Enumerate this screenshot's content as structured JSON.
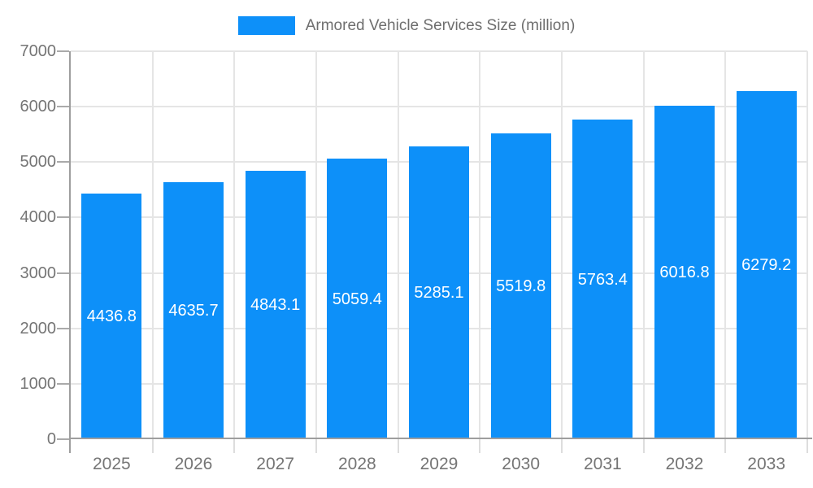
{
  "legend": {
    "label": "Armored Vehicle Services Size (million)"
  },
  "colors": {
    "bar": "#0D90F9",
    "axis_line": "#9e9e9e",
    "grid_line": "#e5e5e5",
    "y_tick": "#aaaaaa",
    "x_tick": "#dddddd",
    "axis_text": "#757575",
    "legend_text": "#6e6e6e",
    "value_text": "#ffffff",
    "background": "#ffffff"
  },
  "chart_data": {
    "type": "bar",
    "title": "Armored Vehicle Services Size (million)",
    "categories": [
      "2025",
      "2026",
      "2027",
      "2028",
      "2029",
      "2030",
      "2031",
      "2032",
      "2033"
    ],
    "values": [
      4436.8,
      4635.7,
      4843.1,
      5059.4,
      5285.1,
      5519.8,
      5763.4,
      6016.8,
      6279.2
    ],
    "value_label_decimals": 1,
    "value_label_position": "inside-center",
    "xlabel": "",
    "ylabel": "",
    "ylim": [
      0,
      7000
    ],
    "y_ticks": [
      0,
      1000,
      2000,
      3000,
      4000,
      5000,
      6000,
      7000
    ],
    "grid": true,
    "legend_position": "top"
  }
}
